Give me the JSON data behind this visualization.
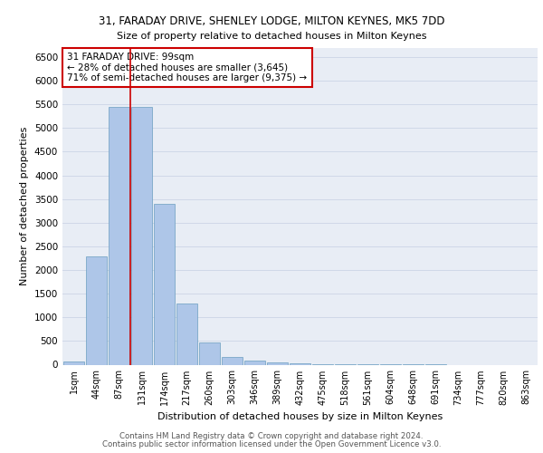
{
  "title_line1": "31, FARADAY DRIVE, SHENLEY LODGE, MILTON KEYNES, MK5 7DD",
  "title_line2": "Size of property relative to detached houses in Milton Keynes",
  "xlabel": "Distribution of detached houses by size in Milton Keynes",
  "ylabel": "Number of detached properties",
  "bar_labels": [
    "1sqm",
    "44sqm",
    "87sqm",
    "131sqm",
    "174sqm",
    "217sqm",
    "260sqm",
    "303sqm",
    "346sqm",
    "389sqm",
    "432sqm",
    "475sqm",
    "518sqm",
    "561sqm",
    "604sqm",
    "648sqm",
    "691sqm",
    "734sqm",
    "777sqm",
    "820sqm",
    "863sqm"
  ],
  "bar_values": [
    60,
    2280,
    5450,
    5450,
    3400,
    1300,
    470,
    155,
    80,
    55,
    30,
    15,
    8,
    4,
    2,
    1,
    1,
    0,
    0,
    0,
    0
  ],
  "bar_color": "#aec6e8",
  "bar_edge_color": "#6a9ec0",
  "grid_color": "#d0d8e8",
  "bg_color": "#e8edf5",
  "vline_x_index": 2.5,
  "vline_color": "#cc0000",
  "annotation_text": "31 FARADAY DRIVE: 99sqm\n← 28% of detached houses are smaller (3,645)\n71% of semi-detached houses are larger (9,375) →",
  "annotation_box_color": "#ffffff",
  "annotation_box_edgecolor": "#cc0000",
  "ylim": [
    0,
    6700
  ],
  "yticks": [
    0,
    500,
    1000,
    1500,
    2000,
    2500,
    3000,
    3500,
    4000,
    4500,
    5000,
    5500,
    6000,
    6500
  ],
  "footer_line1": "Contains HM Land Registry data © Crown copyright and database right 2024.",
  "footer_line2": "Contains public sector information licensed under the Open Government Licence v3.0."
}
